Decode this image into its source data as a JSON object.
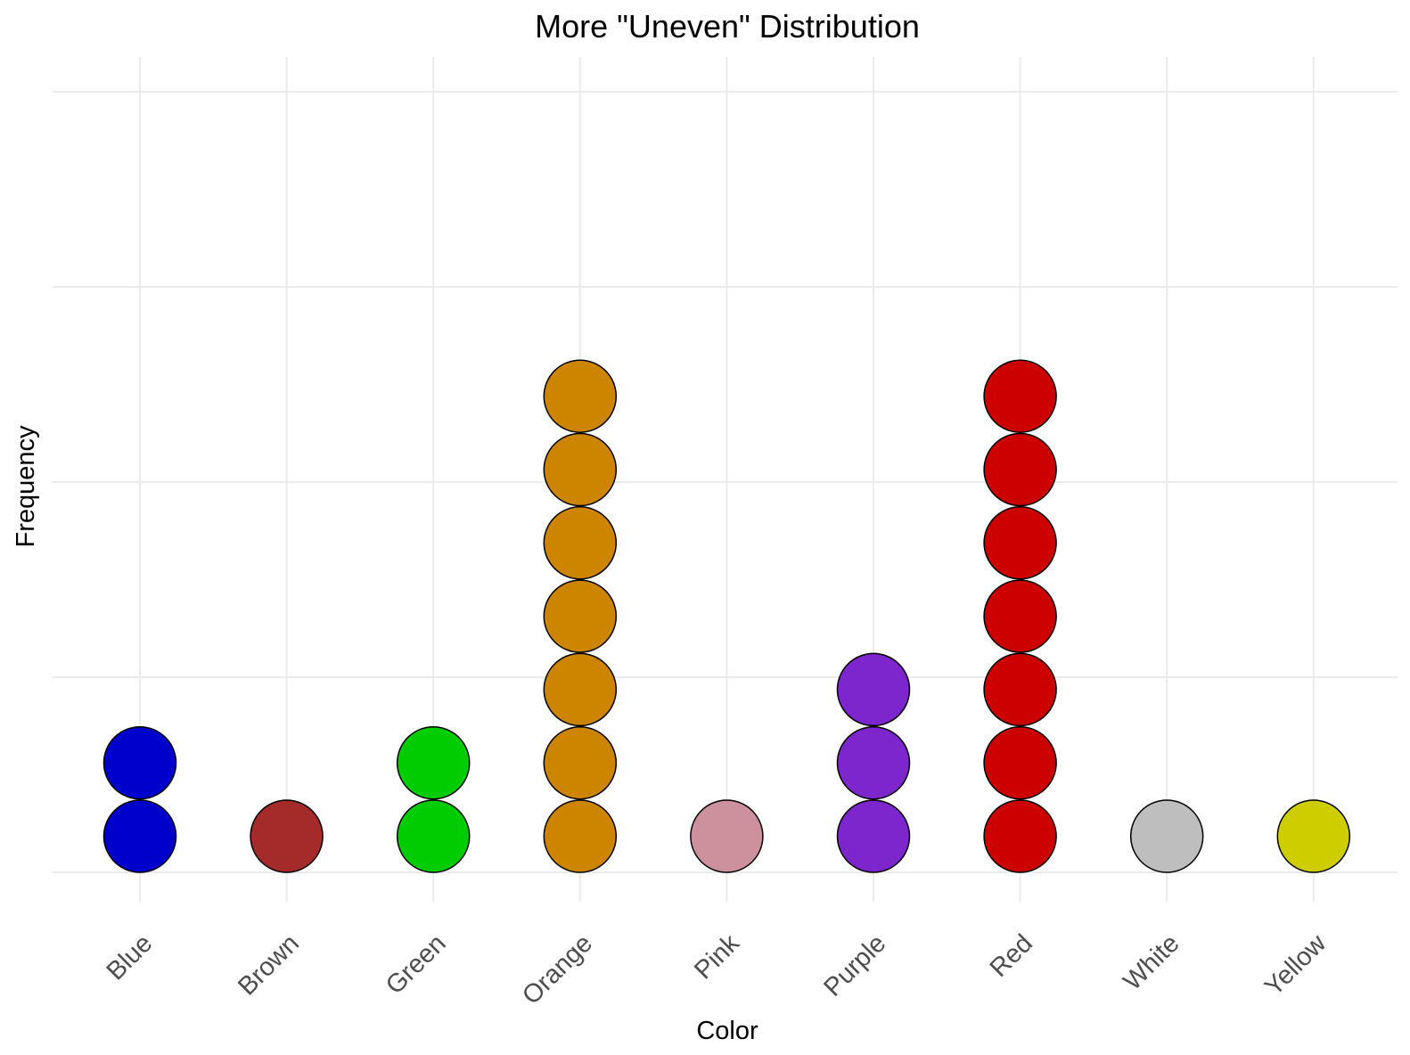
{
  "chart_data": {
    "type": "scatter",
    "title": "More \"Uneven\" Distribution",
    "xlabel": "Color",
    "ylabel": "Frequency",
    "categories": [
      "Blue",
      "Brown",
      "Green",
      "Orange",
      "Pink",
      "Purple",
      "Red",
      "White",
      "Yellow"
    ],
    "values": [
      2,
      1,
      2,
      7,
      1,
      3,
      7,
      1,
      1
    ],
    "colors": [
      "#0000CD",
      "#A52A2A",
      "#00CD00",
      "#CD8500",
      "#CD919E",
      "#7D26CD",
      "#CD0000",
      "#BEBEBE",
      "#CDCD00"
    ],
    "y_ticks_shown": false,
    "grid": true,
    "legend": "none"
  }
}
